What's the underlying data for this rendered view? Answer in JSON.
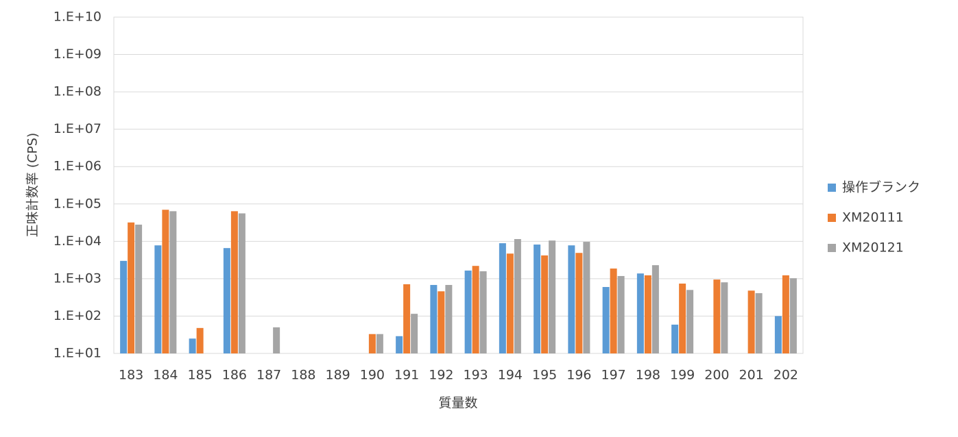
{
  "chart_data": {
    "type": "bar",
    "x_label": "質量数",
    "y_label": "正味計数率 (CPS)",
    "categories": [
      "183",
      "184",
      "185",
      "186",
      "187",
      "188",
      "189",
      "190",
      "191",
      "192",
      "193",
      "194",
      "195",
      "196",
      "197",
      "198",
      "199",
      "200",
      "201",
      "202"
    ],
    "series": [
      {
        "name": "操作ブランク",
        "color": "#5b9bd5",
        "values": [
          3000,
          7800,
          25,
          6600,
          10,
          10,
          10,
          10,
          29,
          680,
          1650,
          8900,
          8200,
          7800,
          600,
          1380,
          59,
          10,
          10,
          100
        ]
      },
      {
        "name": "XM20111",
        "color": "#ed7d31",
        "values": [
          32000,
          70000,
          48,
          64000,
          10,
          10,
          10,
          33,
          710,
          460,
          2200,
          4700,
          4200,
          4900,
          1870,
          1230,
          740,
          950,
          480,
          1230
        ]
      },
      {
        "name": "XM20121",
        "color": "#a5a5a5",
        "values": [
          28000,
          64000,
          10,
          56000,
          50,
          10,
          10,
          33,
          115,
          680,
          1580,
          11500,
          10500,
          9700,
          1180,
          2300,
          500,
          800,
          410,
          1030
        ]
      }
    ],
    "yscale": "log",
    "ylim": [
      10,
      10000000000
    ],
    "yticks": [
      {
        "value": 10,
        "label": "1.E+01"
      },
      {
        "value": 100,
        "label": "1.E+02"
      },
      {
        "value": 1000,
        "label": "1.E+03"
      },
      {
        "value": 10000,
        "label": "1.E+04"
      },
      {
        "value": 100000,
        "label": "1.E+05"
      },
      {
        "value": 1000000,
        "label": "1.E+06"
      },
      {
        "value": 10000000,
        "label": "1.E+07"
      },
      {
        "value": 100000000,
        "label": "1.E+08"
      },
      {
        "value": 1000000000,
        "label": "1.E+09"
      },
      {
        "value": 10000000000,
        "label": "1.E+10"
      }
    ],
    "grid": true,
    "legend": "right"
  }
}
